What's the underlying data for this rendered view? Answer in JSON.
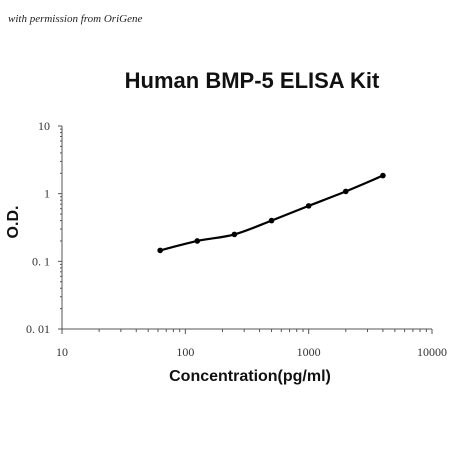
{
  "watermark": "with permission from OriGene",
  "chart_data": {
    "type": "scatter",
    "title": "Human BMP-5 ELISA Kit",
    "xlabel": "Concentration(pg/ml)",
    "ylabel": "O.D.",
    "x_scale": "log",
    "y_scale": "log",
    "xlim": [
      10,
      10000
    ],
    "ylim": [
      0.01,
      10
    ],
    "x_ticks": [
      "10",
      "100",
      "1000",
      "10000"
    ],
    "y_ticks": [
      "0. 01",
      "0. 1",
      "1",
      "10"
    ],
    "grid": false,
    "legend": "none",
    "series": [
      {
        "x": [
          62.5,
          125,
          250,
          500,
          1000,
          2000,
          4000
        ],
        "y": [
          0.145,
          0.2,
          0.25,
          0.4,
          0.66,
          1.08,
          1.85
        ],
        "fit_line": true
      }
    ]
  }
}
